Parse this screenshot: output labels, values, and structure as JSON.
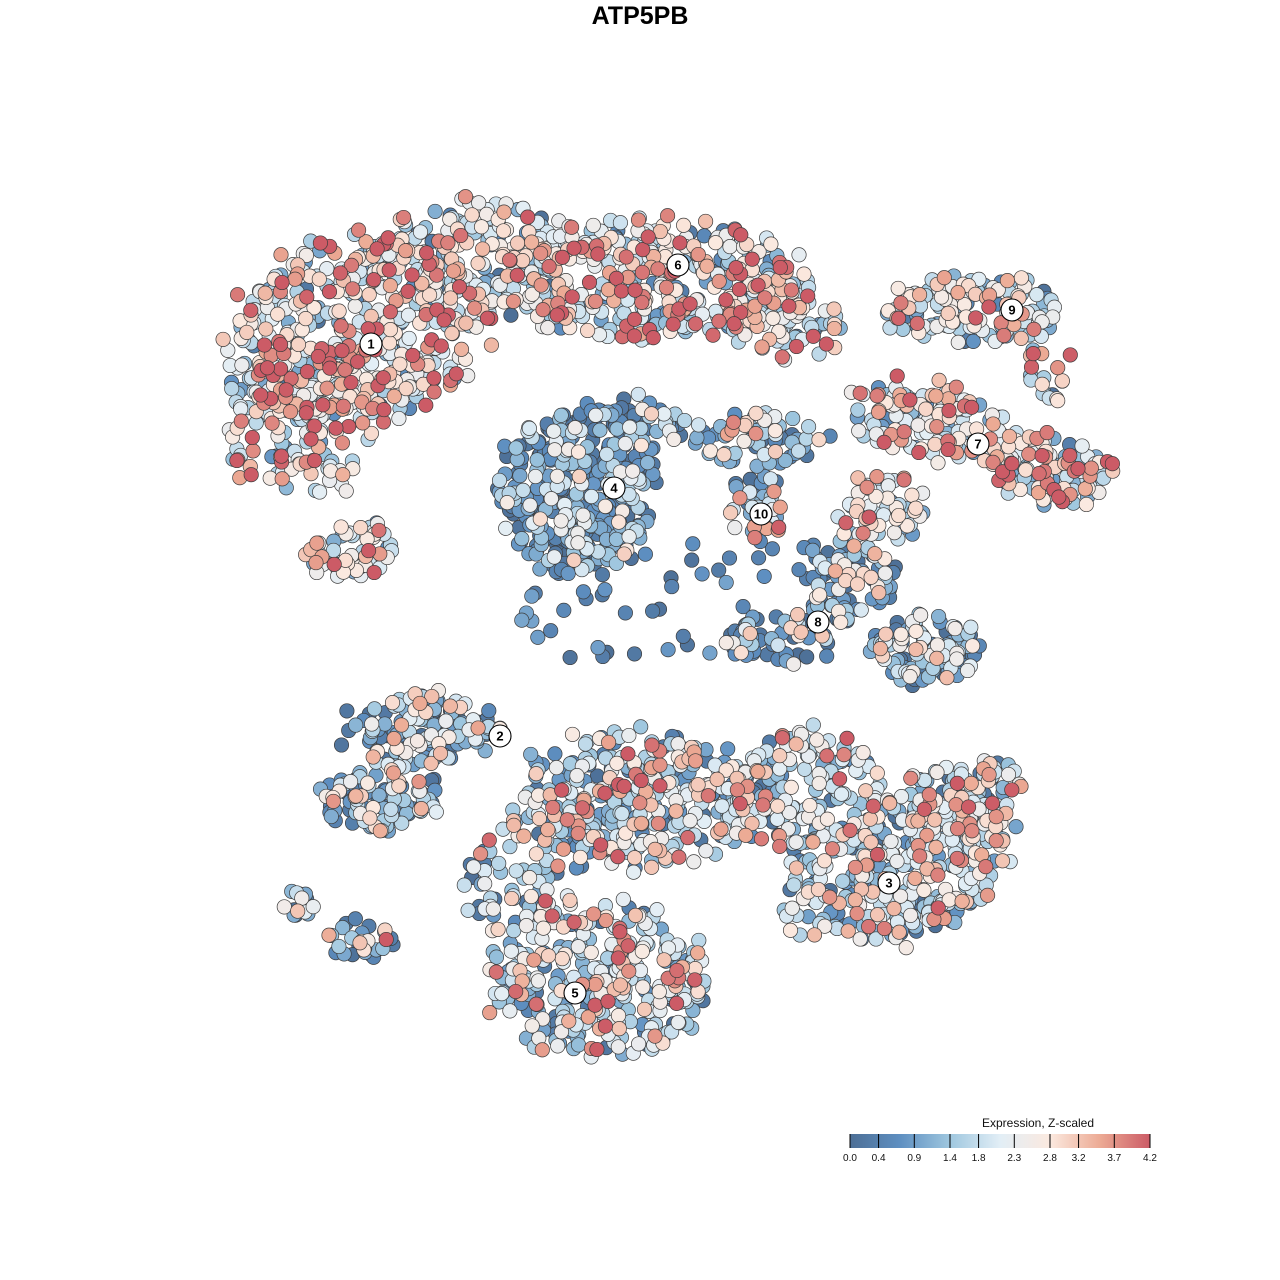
{
  "chart_data": {
    "type": "scatter",
    "title": "ATP5PB",
    "xlabel": "",
    "ylabel": "",
    "grid": false,
    "legend_placement": "bottom-right",
    "legend": {
      "title": "Expression, Z-scaled",
      "min": 0.0,
      "max": 4.2,
      "ticks": [
        "0.0",
        "0.4",
        "0.9",
        "1.4",
        "1.8",
        "2.3",
        "2.8",
        "3.2",
        "3.7",
        "4.2"
      ],
      "colors": [
        "#4d6f96",
        "#5e8fc1",
        "#9fc7df",
        "#e2eef6",
        "#fbe9df",
        "#ecaa94",
        "#cc5b66"
      ]
    },
    "clusters": [
      {
        "label": "1",
        "mean_expression": 2.2
      },
      {
        "label": "2",
        "mean_expression": 1.1
      },
      {
        "label": "3",
        "mean_expression": 1.6
      },
      {
        "label": "4",
        "mean_expression": 0.5
      },
      {
        "label": "5",
        "mean_expression": 1.7
      },
      {
        "label": "6",
        "mean_expression": 2.2
      },
      {
        "label": "7",
        "mean_expression": 2.1
      },
      {
        "label": "8",
        "mean_expression": 0.9
      },
      {
        "label": "9",
        "mean_expression": 1.9
      },
      {
        "label": "10",
        "mean_expression": 1.3
      }
    ]
  }
}
